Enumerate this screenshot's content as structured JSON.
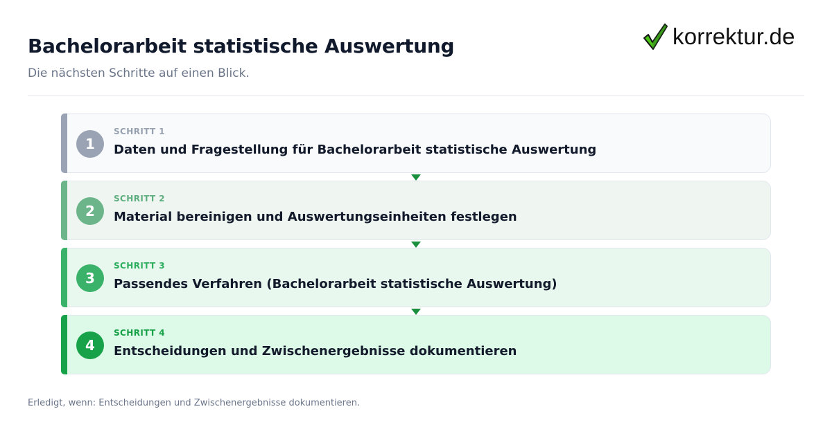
{
  "header": {
    "title": "Bachelorarbeit statistische Auswertung",
    "subtitle": "Die nächsten Schritte auf einen Blick."
  },
  "logo": {
    "text": "korrektur.de",
    "icon": "checkmark-icon",
    "check_color": "#2e7d1f"
  },
  "steps": [
    {
      "number": "1",
      "label": "SCHRITT 1",
      "text": "Daten und Fragestellung für Bachelorarbeit statistische Auswertung",
      "accent": "#9aa3b3",
      "bg": "#f8fafc",
      "label_color": "#98a1b0"
    },
    {
      "number": "2",
      "label": "SCHRITT 2",
      "text": "Material bereinigen und Auswertungseinheiten festlegen",
      "accent": "#6cb489",
      "bg": "#eff6f1",
      "label_color": "#5fae80"
    },
    {
      "number": "3",
      "label": "SCHRITT 3",
      "text": "Passendes Verfahren (Bachelorarbeit statistische Auswertung)",
      "accent": "#3ab26a",
      "bg": "#e8f8ee",
      "label_color": "#2fae60"
    },
    {
      "number": "4",
      "label": "SCHRITT 4",
      "text": "Entscheidungen und Zwischenergebnisse dokumentieren",
      "accent": "#17a24a",
      "bg": "#dcfae7",
      "label_color": "#18a048"
    }
  ],
  "arrow_color": "#1a8f3e",
  "footer": {
    "text": "Erledigt, wenn: Entscheidungen und Zwischenergebnisse dokumentieren."
  }
}
